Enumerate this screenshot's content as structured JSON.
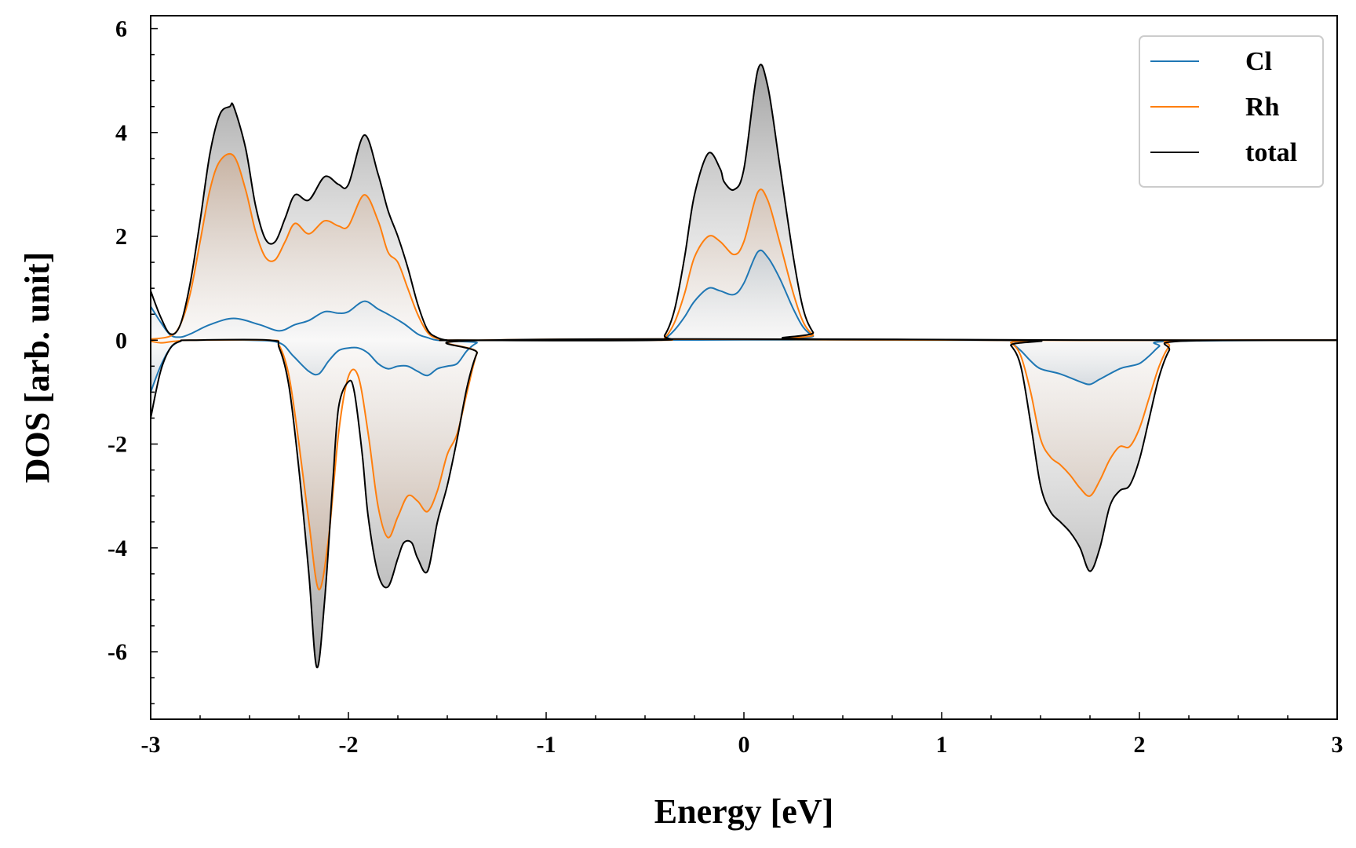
{
  "chart_data": {
    "type": "line",
    "xlabel": "Energy [eV]",
    "ylabel": "DOS [arb. unit]",
    "xlim": [
      -3,
      3
    ],
    "ylim": [
      -7.3,
      6.25
    ],
    "xticks": [
      -3,
      -2,
      -1,
      0,
      1,
      2,
      3
    ],
    "yticks": [
      -6,
      -4,
      -2,
      0,
      2,
      4,
      6
    ],
    "grid": false,
    "legend_position": "top-right",
    "fill_between": true,
    "series": [
      {
        "name": "Cl",
        "color": "#1f77b4",
        "up": {
          "x": [
            -3,
            -2.95,
            -2.9,
            -2.85,
            -2.8,
            -2.7,
            -2.58,
            -2.45,
            -2.35,
            -2.27,
            -2.2,
            -2.12,
            -2.05,
            -2.0,
            -1.92,
            -1.85,
            -1.8,
            -1.72,
            -1.65,
            -1.6,
            -1.55,
            -1.45,
            -1.35,
            -0.45,
            -0.4,
            -0.35,
            -0.3,
            -0.25,
            -0.18,
            -0.12,
            -0.05,
            0.0,
            0.07,
            0.12,
            0.18,
            0.25,
            0.3,
            0.35,
            0.4,
            3
          ],
          "y": [
            0.65,
            0.35,
            0.1,
            0.06,
            0.12,
            0.3,
            0.42,
            0.3,
            0.18,
            0.3,
            0.38,
            0.55,
            0.52,
            0.55,
            0.75,
            0.6,
            0.5,
            0.32,
            0.12,
            0.05,
            0.0,
            0.0,
            0.0,
            0.0,
            0.03,
            0.2,
            0.45,
            0.75,
            1.0,
            0.95,
            0.88,
            1.1,
            1.7,
            1.6,
            1.2,
            0.6,
            0.25,
            0.08,
            0.01,
            0.0
          ]
        },
        "down": {
          "x": [
            -3,
            -2.95,
            -2.9,
            -2.85,
            -2.8,
            -2.5,
            -2.35,
            -2.28,
            -2.2,
            -2.15,
            -2.1,
            -2.05,
            -2.0,
            -1.95,
            -1.9,
            -1.85,
            -1.8,
            -1.75,
            -1.7,
            -1.65,
            -1.6,
            -1.55,
            -1.5,
            -1.45,
            -1.4,
            -1.35,
            -1.3,
            1.3,
            1.35,
            1.4,
            1.45,
            1.5,
            1.6,
            1.7,
            1.75,
            1.8,
            1.9,
            1.95,
            2.0,
            2.05,
            2.1,
            2.15,
            3
          ],
          "y": [
            -1.0,
            -0.5,
            -0.15,
            -0.02,
            0.0,
            0.0,
            -0.05,
            -0.3,
            -0.6,
            -0.65,
            -0.4,
            -0.2,
            -0.15,
            -0.15,
            -0.25,
            -0.45,
            -0.55,
            -0.5,
            -0.5,
            -0.6,
            -0.68,
            -0.55,
            -0.5,
            -0.45,
            -0.2,
            -0.05,
            0.0,
            0.0,
            -0.05,
            -0.2,
            -0.4,
            -0.55,
            -0.65,
            -0.8,
            -0.85,
            -0.75,
            -0.55,
            -0.5,
            -0.45,
            -0.3,
            -0.12,
            -0.02,
            0.0
          ]
        }
      },
      {
        "name": "Rh",
        "color": "#ff7f0e",
        "up": {
          "x": [
            -3,
            -2.9,
            -2.85,
            -2.8,
            -2.75,
            -2.7,
            -2.65,
            -2.58,
            -2.52,
            -2.47,
            -2.42,
            -2.37,
            -2.32,
            -2.27,
            -2.2,
            -2.12,
            -2.05,
            -2.0,
            -1.92,
            -1.85,
            -1.8,
            -1.75,
            -1.7,
            -1.65,
            -1.6,
            -1.55,
            -1.5,
            -1.45,
            -0.45,
            -0.4,
            -0.35,
            -0.3,
            -0.25,
            -0.18,
            -0.12,
            -0.05,
            0.0,
            0.07,
            0.12,
            0.18,
            0.25,
            0.3,
            0.35,
            0.4,
            3
          ],
          "y": [
            0.02,
            0.08,
            0.3,
            0.9,
            1.9,
            2.9,
            3.45,
            3.55,
            2.9,
            2.1,
            1.6,
            1.55,
            1.9,
            2.25,
            2.05,
            2.3,
            2.2,
            2.2,
            2.8,
            2.3,
            1.7,
            1.5,
            1.0,
            0.5,
            0.15,
            0.03,
            0.0,
            0.0,
            0.0,
            0.05,
            0.35,
            0.9,
            1.6,
            2.0,
            1.9,
            1.65,
            1.9,
            2.85,
            2.7,
            1.9,
            0.9,
            0.35,
            0.1,
            0.01,
            0.0
          ]
        },
        "down": {
          "x": [
            -3,
            -2.95,
            -2.9,
            -2.85,
            -2.8,
            -2.4,
            -2.35,
            -2.3,
            -2.25,
            -2.2,
            -2.15,
            -2.1,
            -2.05,
            -2.0,
            -1.95,
            -1.9,
            -1.85,
            -1.8,
            -1.75,
            -1.7,
            -1.65,
            -1.6,
            -1.55,
            -1.5,
            -1.45,
            -1.4,
            -1.35,
            -1.3,
            1.3,
            1.35,
            1.4,
            1.45,
            1.5,
            1.55,
            1.6,
            1.65,
            1.7,
            1.75,
            1.8,
            1.85,
            1.9,
            1.95,
            2.0,
            2.05,
            2.1,
            2.15,
            2.2,
            3
          ],
          "y": [
            -0.02,
            -0.05,
            -0.03,
            -0.01,
            0.0,
            0.0,
            -0.1,
            -0.7,
            -2.0,
            -3.5,
            -4.8,
            -3.8,
            -1.8,
            -0.7,
            -0.7,
            -1.8,
            -3.2,
            -3.8,
            -3.4,
            -3.0,
            -3.1,
            -3.3,
            -2.9,
            -2.2,
            -1.8,
            -1.0,
            -0.25,
            0.0,
            0.0,
            -0.05,
            -0.3,
            -1.0,
            -1.9,
            -2.25,
            -2.4,
            -2.6,
            -2.85,
            -3.0,
            -2.7,
            -2.3,
            -2.05,
            -2.05,
            -1.7,
            -1.1,
            -0.5,
            -0.12,
            -0.01,
            0.0
          ]
        }
      },
      {
        "name": "total",
        "color": "#000000",
        "up": {
          "x": [
            -3,
            -2.95,
            -2.9,
            -2.85,
            -2.8,
            -2.75,
            -2.7,
            -2.65,
            -2.6,
            -2.58,
            -2.52,
            -2.47,
            -2.42,
            -2.37,
            -2.32,
            -2.27,
            -2.2,
            -2.12,
            -2.05,
            -2.0,
            -1.92,
            -1.85,
            -1.8,
            -1.75,
            -1.7,
            -1.65,
            -1.6,
            -1.55,
            -1.5,
            -1.45,
            -0.45,
            -0.4,
            -0.35,
            -0.3,
            -0.25,
            -0.18,
            -0.12,
            -0.1,
            -0.05,
            0.0,
            0.07,
            0.12,
            0.18,
            0.25,
            0.3,
            0.35,
            0.4,
            3
          ],
          "y": [
            0.95,
            0.45,
            0.12,
            0.3,
            1.1,
            2.3,
            3.6,
            4.35,
            4.5,
            4.5,
            3.7,
            2.6,
            1.95,
            1.9,
            2.35,
            2.8,
            2.7,
            3.15,
            3.0,
            3.0,
            3.95,
            3.2,
            2.5,
            2.0,
            1.4,
            0.7,
            0.2,
            0.05,
            0.0,
            0.0,
            0.0,
            0.1,
            0.6,
            1.6,
            2.8,
            3.6,
            3.3,
            3.05,
            2.9,
            3.3,
            5.2,
            4.9,
            3.4,
            1.6,
            0.6,
            0.15,
            0.02,
            0.0
          ]
        },
        "down": {
          "x": [
            -3,
            -2.95,
            -2.9,
            -2.85,
            -2.8,
            -2.4,
            -2.35,
            -2.3,
            -2.25,
            -2.2,
            -2.16,
            -2.12,
            -2.08,
            -2.05,
            -2.0,
            -1.97,
            -1.93,
            -1.9,
            -1.85,
            -1.8,
            -1.75,
            -1.72,
            -1.68,
            -1.65,
            -1.6,
            -1.55,
            -1.5,
            -1.45,
            -1.4,
            -1.35,
            -1.3,
            1.3,
            1.35,
            1.4,
            1.45,
            1.5,
            1.55,
            1.6,
            1.65,
            1.7,
            1.75,
            1.8,
            1.85,
            1.9,
            1.95,
            2.0,
            2.05,
            2.1,
            2.15,
            2.2,
            3
          ],
          "y": [
            -1.5,
            -0.6,
            -0.15,
            -0.02,
            0.0,
            0.0,
            -0.15,
            -0.9,
            -2.5,
            -4.5,
            -6.3,
            -5.0,
            -2.8,
            -1.3,
            -0.8,
            -1.0,
            -2.2,
            -3.4,
            -4.5,
            -4.75,
            -4.2,
            -3.9,
            -3.9,
            -4.2,
            -4.45,
            -3.5,
            -2.8,
            -1.9,
            -0.9,
            -0.25,
            0.0,
            0.0,
            -0.1,
            -0.5,
            -1.6,
            -2.8,
            -3.3,
            -3.5,
            -3.7,
            -4.0,
            -4.45,
            -4.0,
            -3.2,
            -2.9,
            -2.8,
            -2.3,
            -1.5,
            -0.7,
            -0.2,
            -0.02,
            0.0
          ]
        }
      }
    ]
  }
}
